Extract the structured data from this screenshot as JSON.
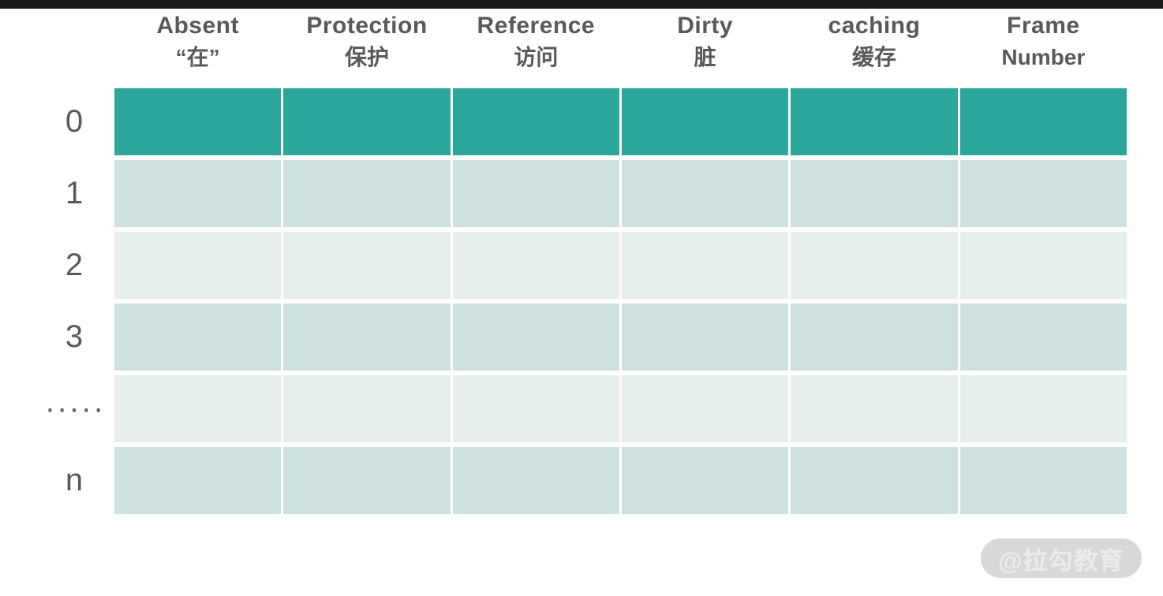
{
  "page": {
    "background_color": "#ffffff",
    "top_bar_color": "#1b1b1b"
  },
  "table": {
    "columns": [
      {
        "line1": "Absent",
        "line2": "“在”"
      },
      {
        "line1": "Protection",
        "line2": "保护"
      },
      {
        "line1": "Reference",
        "line2": "访问"
      },
      {
        "line1": "Dirty",
        "line2": "脏"
      },
      {
        "line1": "caching",
        "line2": "缓存"
      },
      {
        "line1": "Frame",
        "line2": "Number"
      }
    ],
    "rows": [
      {
        "label": "0",
        "color": "#2aa79a"
      },
      {
        "label": "1",
        "color": "#cde1de"
      },
      {
        "label": "2",
        "color": "#e7efed"
      },
      {
        "label": "3",
        "color": "#cde1de"
      },
      {
        "label": "·····",
        "color": "#e7efed"
      },
      {
        "label": "n",
        "color": "#cde1de"
      }
    ],
    "colors": {
      "header_text": "#595959",
      "row_label_text": "#595959",
      "accent_teal": "#2aa79a",
      "band_dark": "#cde1de",
      "band_light": "#e7efed"
    }
  },
  "watermark": {
    "text": "@拉勾教育",
    "bg_color": "#d8d8d8",
    "text_color": "#ececec"
  }
}
